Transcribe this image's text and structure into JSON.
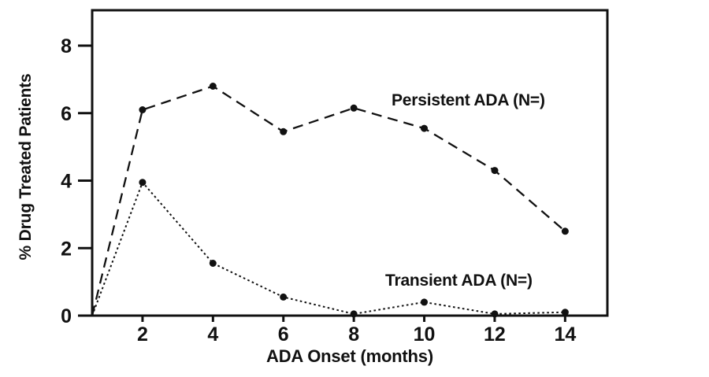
{
  "figure": {
    "background_color": "#ffffff",
    "ink_color": "#111111"
  },
  "chart_data": {
    "type": "line",
    "title": "",
    "xlabel": "ADA Onset (months)",
    "ylabel": "% Drug Treated Patients",
    "xlim": [
      0.57,
      15.2
    ],
    "ylim": [
      0,
      9.05
    ],
    "x_ticks": [
      2,
      4,
      6,
      8,
      10,
      12,
      14
    ],
    "y_ticks": [
      0,
      2,
      4,
      6,
      8
    ],
    "grid": false,
    "legend_position": "inline-annotations",
    "categories": [
      2,
      4,
      6,
      8,
      10,
      12,
      14
    ],
    "series": [
      {
        "name": "Persistent ADA (N=)",
        "line_style": "long-dash",
        "marker": "filled-circle",
        "starts_at_origin": true,
        "values": [
          6.1,
          6.8,
          5.45,
          6.15,
          5.55,
          4.3,
          2.5
        ]
      },
      {
        "name": "Transient ADA (N=)",
        "line_style": "dotted",
        "marker": "filled-circle",
        "starts_at_origin": true,
        "values": [
          3.95,
          1.55,
          0.55,
          0.05,
          0.4,
          0.05,
          0.1
        ]
      }
    ]
  }
}
